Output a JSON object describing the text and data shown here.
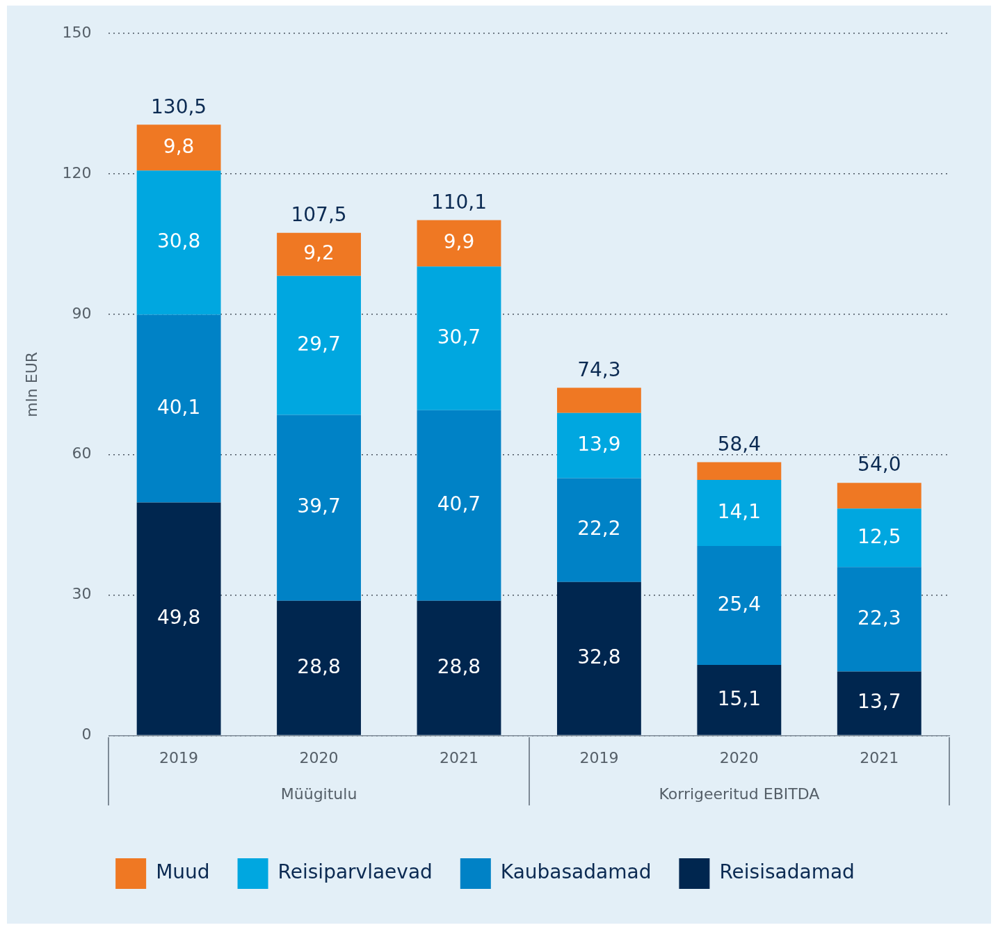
{
  "chart_data": {
    "type": "bar",
    "stacked": true,
    "ylabel": "mln EUR",
    "categories": [
      "2019",
      "2020",
      "2021",
      "2019",
      "2020",
      "2021"
    ],
    "annotations": [
      "Müügitulu",
      "Korrigeeritud EBITDA"
    ],
    "series": [
      {
        "name": "Reisisadamad",
        "color": "#00264f",
        "values": [
          49.8,
          28.8,
          28.8,
          32.8,
          15.1,
          13.7
        ],
        "value_labels": [
          "49,8",
          "28,8",
          "28,8",
          "32,8",
          "15,1",
          "13,7"
        ]
      },
      {
        "name": "Kaubasadamad",
        "color": "#0082c6",
        "values": [
          40.1,
          39.7,
          40.7,
          22.2,
          25.4,
          22.3
        ],
        "value_labels": [
          "40,1",
          "39,7",
          "40,7",
          "22,2",
          "25,4",
          "22,3"
        ]
      },
      {
        "name": "Reisiparvlaevad",
        "color": "#00a7e0",
        "values": [
          30.8,
          29.7,
          30.7,
          13.9,
          14.1,
          12.5
        ],
        "value_labels": [
          "30,8",
          "29,7",
          "30,7",
          "13,9",
          "14,1",
          "12,5"
        ]
      },
      {
        "name": "Muud",
        "color": "#ef7823",
        "values": [
          9.8,
          9.2,
          9.9,
          5.4,
          3.8,
          5.5
        ],
        "value_labels": [
          "9,8",
          "9,2",
          "9,9",
          null,
          null,
          null
        ]
      }
    ],
    "totals": [
      "130,5",
      "107,5",
      "110,1",
      "74,3",
      "58,4",
      "54,0"
    ],
    "ylim": [
      0,
      150
    ],
    "yticks": [
      0,
      30,
      60,
      90,
      120,
      150
    ],
    "grid": "y",
    "legend": "bottom"
  }
}
